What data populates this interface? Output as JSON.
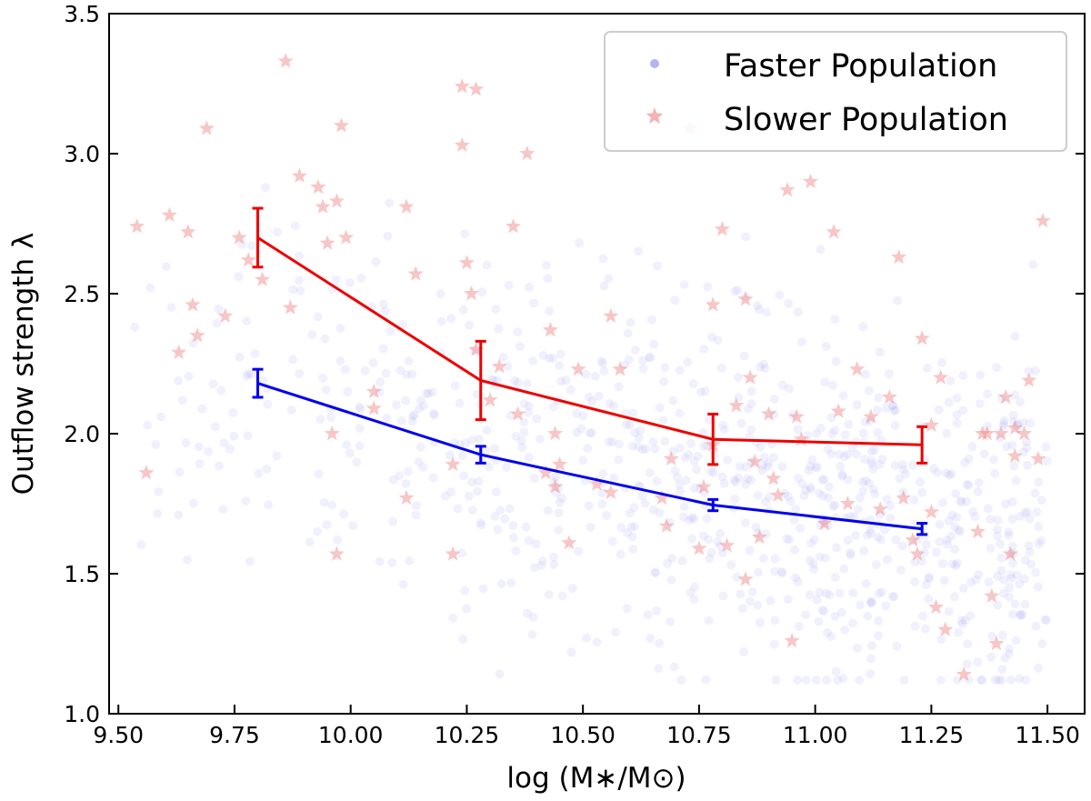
{
  "chart_data": {
    "type": "scatter",
    "title": "",
    "xlabel": "log (M∗/M⊙)",
    "ylabel": "Outflow strength λ",
    "xlim": [
      9.48,
      11.58
    ],
    "ylim": [
      1.0,
      3.5
    ],
    "xticks": [
      "9.50",
      "9.75",
      "10.00",
      "10.25",
      "10.50",
      "10.75",
      "11.00",
      "11.25",
      "11.50"
    ],
    "yticks": [
      "1.0",
      "1.5",
      "2.0",
      "2.5",
      "3.0",
      "3.5"
    ],
    "legend_position": "top-right",
    "colors": {
      "faster_points": "#9a9af0",
      "slower_points": "#f08080",
      "faster_line": "#0000ee",
      "slower_line": "#ee0000"
    },
    "series": [
      {
        "name": "Faster Population",
        "kind": "scatter",
        "marker": "circle",
        "points": "approximately 900 faint semi-transparent points spread over x 9.50-11.50, y 1.12-3.45, densest around x 10.5-11.5, y 1.4-2.2"
      },
      {
        "name": "Slower Population",
        "kind": "scatter",
        "marker": "star",
        "points": [
          [
            9.54,
            2.74
          ],
          [
            9.56,
            1.86
          ],
          [
            9.61,
            2.78
          ],
          [
            9.63,
            2.29
          ],
          [
            9.65,
            2.72
          ],
          [
            9.66,
            2.46
          ],
          [
            9.67,
            2.35
          ],
          [
            9.69,
            3.09
          ],
          [
            9.73,
            2.42
          ],
          [
            9.76,
            2.7
          ],
          [
            9.78,
            2.62
          ],
          [
            9.81,
            2.55
          ],
          [
            9.86,
            3.33
          ],
          [
            9.87,
            2.45
          ],
          [
            9.89,
            2.92
          ],
          [
            9.93,
            2.88
          ],
          [
            9.94,
            2.81
          ],
          [
            9.95,
            2.68
          ],
          [
            9.96,
            2.0
          ],
          [
            9.97,
            2.83
          ],
          [
            9.97,
            1.57
          ],
          [
            9.98,
            3.1
          ],
          [
            9.99,
            2.7
          ],
          [
            10.05,
            2.15
          ],
          [
            10.05,
            2.09
          ],
          [
            10.12,
            1.77
          ],
          [
            10.12,
            2.81
          ],
          [
            10.14,
            2.57
          ],
          [
            10.22,
            1.89
          ],
          [
            10.22,
            1.57
          ],
          [
            10.24,
            3.24
          ],
          [
            10.24,
            3.03
          ],
          [
            10.25,
            2.61
          ],
          [
            10.26,
            2.5
          ],
          [
            10.27,
            3.23
          ],
          [
            10.27,
            2.3
          ],
          [
            10.3,
            2.12
          ],
          [
            10.32,
            2.24
          ],
          [
            10.35,
            2.74
          ],
          [
            10.36,
            2.07
          ],
          [
            10.38,
            3.0
          ],
          [
            10.42,
            1.86
          ],
          [
            10.43,
            2.37
          ],
          [
            10.44,
            2.0
          ],
          [
            10.44,
            1.81
          ],
          [
            10.45,
            1.89
          ],
          [
            10.47,
            1.61
          ],
          [
            10.49,
            2.23
          ],
          [
            10.53,
            1.82
          ],
          [
            10.56,
            2.42
          ],
          [
            10.56,
            1.79
          ],
          [
            10.58,
            2.23
          ],
          [
            10.67,
            1.77
          ],
          [
            10.68,
            1.67
          ],
          [
            10.69,
            1.91
          ],
          [
            10.73,
            3.09
          ],
          [
            10.75,
            1.59
          ],
          [
            10.76,
            1.81
          ],
          [
            10.78,
            2.46
          ],
          [
            10.78,
            1.96
          ],
          [
            10.8,
            2.73
          ],
          [
            10.81,
            1.6
          ],
          [
            10.83,
            2.1
          ],
          [
            10.85,
            2.48
          ],
          [
            10.85,
            1.48
          ],
          [
            10.86,
            2.2
          ],
          [
            10.87,
            1.9
          ],
          [
            10.88,
            1.63
          ],
          [
            10.9,
            2.07
          ],
          [
            10.91,
            1.84
          ],
          [
            10.92,
            1.78
          ],
          [
            10.94,
            2.87
          ],
          [
            10.95,
            1.26
          ],
          [
            10.96,
            2.06
          ],
          [
            10.97,
            1.98
          ],
          [
            10.99,
            2.9
          ],
          [
            11.02,
            1.68
          ],
          [
            11.04,
            2.72
          ],
          [
            11.05,
            2.08
          ],
          [
            11.07,
            1.75
          ],
          [
            11.09,
            2.23
          ],
          [
            11.12,
            2.06
          ],
          [
            11.14,
            1.73
          ],
          [
            11.16,
            2.13
          ],
          [
            11.18,
            2.63
          ],
          [
            11.19,
            1.77
          ],
          [
            11.21,
            1.62
          ],
          [
            11.22,
            1.57
          ],
          [
            11.23,
            2.34
          ],
          [
            11.25,
            2.03
          ],
          [
            11.25,
            1.72
          ],
          [
            11.26,
            1.38
          ],
          [
            11.27,
            2.2
          ],
          [
            11.28,
            1.3
          ],
          [
            11.32,
            1.14
          ],
          [
            11.35,
            1.65
          ],
          [
            11.36,
            2.0
          ],
          [
            11.37,
            2.0
          ],
          [
            11.38,
            1.42
          ],
          [
            11.39,
            1.25
          ],
          [
            11.4,
            2.0
          ],
          [
            11.41,
            2.13
          ],
          [
            11.42,
            1.57
          ],
          [
            11.43,
            1.92
          ],
          [
            11.43,
            2.02
          ],
          [
            11.45,
            2.0
          ],
          [
            11.46,
            2.19
          ],
          [
            11.48,
            1.91
          ],
          [
            11.49,
            2.76
          ]
        ]
      },
      {
        "name": "Faster Population median",
        "kind": "line",
        "x": [
          9.8,
          10.28,
          10.78,
          11.23
        ],
        "y": [
          2.18,
          1.925,
          1.745,
          1.66
        ],
        "yerr": [
          0.05,
          0.03,
          0.02,
          0.02
        ]
      },
      {
        "name": "Slower Population median",
        "kind": "line",
        "x": [
          9.8,
          10.28,
          10.78,
          11.23
        ],
        "y": [
          2.7,
          2.19,
          1.98,
          1.96
        ],
        "yerr": [
          0.105,
          0.14,
          0.09,
          0.065
        ]
      }
    ]
  }
}
